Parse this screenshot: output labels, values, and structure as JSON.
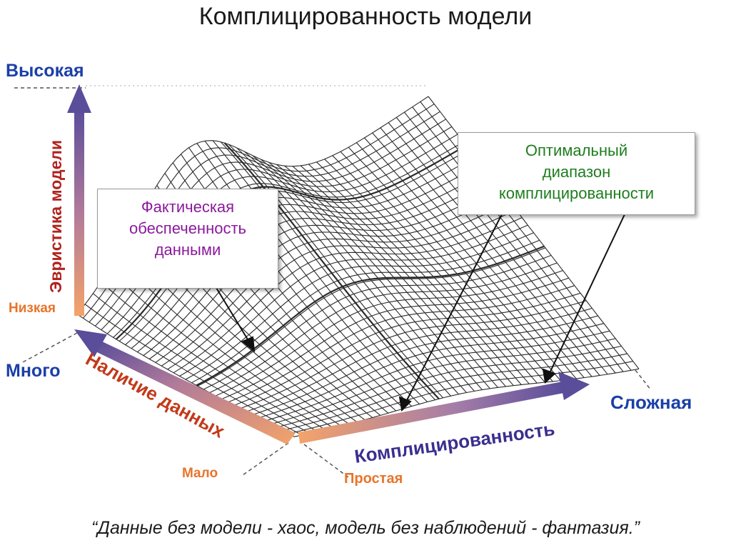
{
  "title": "Комплицированность модели",
  "y_axis": {
    "high_label": "Высокая",
    "low_label": "Низкая",
    "name": "Эвристика модели"
  },
  "data_axis": {
    "many_label": "Много",
    "few_label": "Мало",
    "name": "Наличие данных"
  },
  "complexity_axis": {
    "simple_label": "Простая",
    "complex_label": "Сложная",
    "name": "Комплицированность"
  },
  "callout_data": {
    "lines": [
      "Фактическая",
      "обеспеченность",
      "данными"
    ]
  },
  "callout_optimal": {
    "lines": [
      "Оптимальный",
      "диапазон",
      "комплицированности"
    ]
  },
  "quote": "“Данные без модели - хаос, модель без наблюдений - фантазия.”",
  "colors": {
    "high_label": "#1b3fa8",
    "low_label": "#e8742a",
    "axis_name_red": "#b0231e",
    "data_axis_name": "#c23a1a",
    "complexity_axis_name": "#3a2f8f",
    "callout_data_text": "#8b1a9c",
    "callout_optimal_text": "#1e7d1e"
  }
}
